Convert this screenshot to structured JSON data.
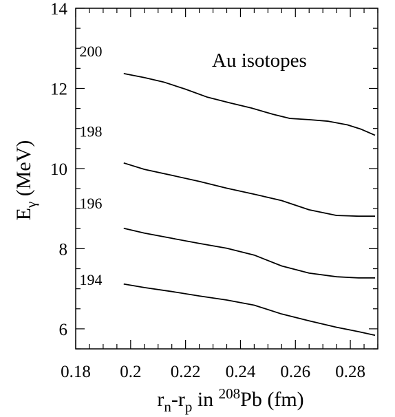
{
  "chart_data": {
    "type": "line",
    "title": "",
    "annotation": "Au isotopes",
    "xlabel": {
      "base": "r",
      "sub_n": "n",
      "dash": "-r",
      "sub_p": "p",
      "mid": " in ",
      "sup_mass": "208",
      "tail": "Pb (fm)"
    },
    "ylabel": {
      "base": "E",
      "sub": "γ",
      "tail": " (MeV)"
    },
    "xlim": [
      0.18,
      0.29
    ],
    "ylim": [
      5.5,
      14
    ],
    "xticks": [
      {
        "value": 0.18,
        "label": "0.18"
      },
      {
        "value": 0.2,
        "label": "0.2"
      },
      {
        "value": 0.22,
        "label": "0.22"
      },
      {
        "value": 0.24,
        "label": "0.24"
      },
      {
        "value": 0.26,
        "label": "0.26"
      },
      {
        "value": 0.28,
        "label": "0.28"
      }
    ],
    "yticks": [
      {
        "value": 6,
        "label": "6"
      },
      {
        "value": 8,
        "label": "8"
      },
      {
        "value": 10,
        "label": "10"
      },
      {
        "value": 12,
        "label": "12"
      },
      {
        "value": 14,
        "label": "14"
      }
    ],
    "grid": false,
    "series": [
      {
        "name": "194",
        "label_pos": [
          0.1855,
          7.1
        ],
        "x": [
          0.1975,
          0.205,
          0.215,
          0.225,
          0.235,
          0.245,
          0.255,
          0.265,
          0.275,
          0.283,
          0.289
        ],
        "y": [
          7.12,
          7.03,
          6.93,
          6.82,
          6.72,
          6.59,
          6.37,
          6.2,
          6.04,
          5.93,
          5.84
        ]
      },
      {
        "name": "196",
        "label_pos": [
          0.1855,
          9.0
        ],
        "x": [
          0.1975,
          0.205,
          0.215,
          0.225,
          0.235,
          0.245,
          0.255,
          0.265,
          0.275,
          0.283,
          0.289
        ],
        "y": [
          8.51,
          8.39,
          8.26,
          8.13,
          8.01,
          7.84,
          7.57,
          7.39,
          7.3,
          7.27,
          7.27
        ]
      },
      {
        "name": "198",
        "label_pos": [
          0.1855,
          10.8
        ],
        "x": [
          0.1975,
          0.205,
          0.215,
          0.225,
          0.235,
          0.245,
          0.255,
          0.265,
          0.275,
          0.283,
          0.289
        ],
        "y": [
          10.14,
          9.98,
          9.83,
          9.68,
          9.51,
          9.36,
          9.2,
          8.97,
          8.83,
          8.81,
          8.81
        ]
      },
      {
        "name": "200",
        "label_pos": [
          0.1855,
          12.8
        ],
        "x": [
          0.1975,
          0.205,
          0.212,
          0.22,
          0.228,
          0.236,
          0.244,
          0.252,
          0.258,
          0.265,
          0.272,
          0.279,
          0.284,
          0.289
        ],
        "y": [
          12.37,
          12.27,
          12.16,
          11.98,
          11.78,
          11.64,
          11.51,
          11.35,
          11.25,
          11.22,
          11.18,
          11.09,
          10.98,
          10.83
        ]
      }
    ]
  }
}
